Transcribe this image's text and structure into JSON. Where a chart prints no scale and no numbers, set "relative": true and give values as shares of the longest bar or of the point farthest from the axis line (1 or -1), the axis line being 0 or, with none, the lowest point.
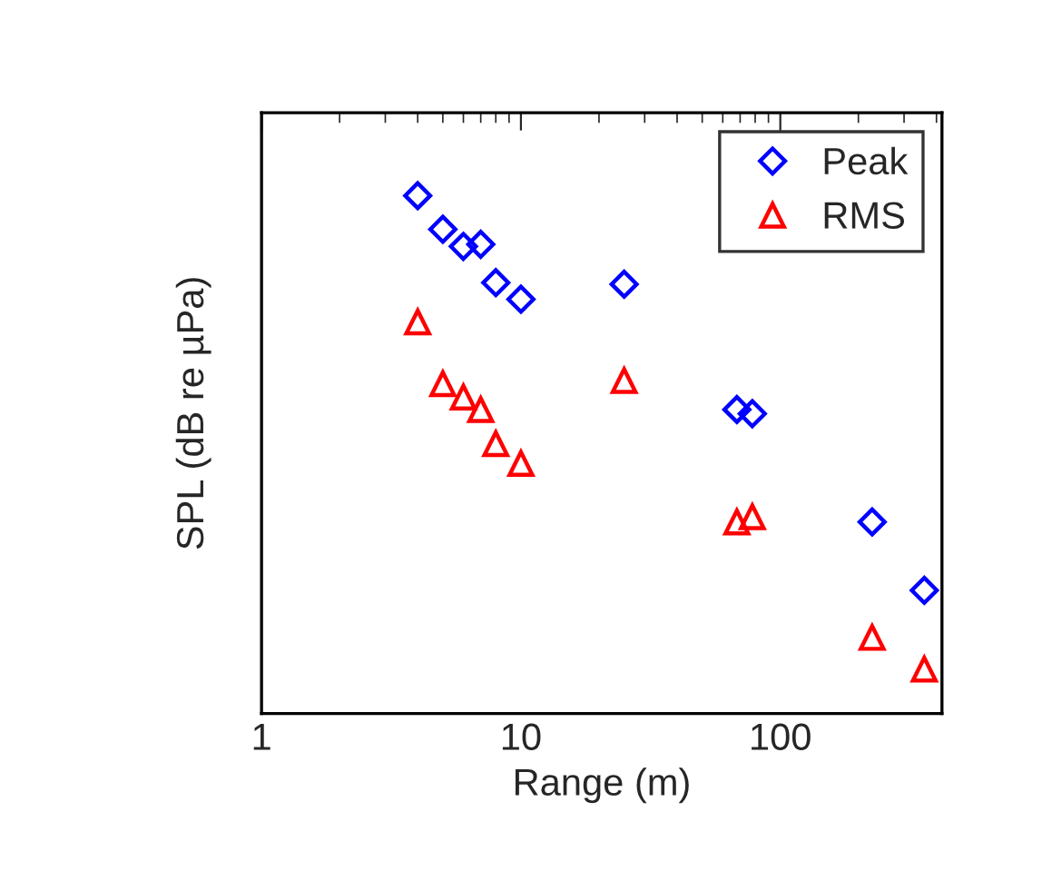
{
  "chart_data": {
    "type": "scatter",
    "relative": true,
    "xlabel": "Range (m)",
    "ylabel": "SPL (dB re µPa)",
    "log": "x",
    "xlim": [
      1,
      420
    ],
    "xticks": [
      1,
      10,
      100
    ],
    "grid": false,
    "legend": "top right",
    "series": [
      {
        "name": "Peak",
        "color": "#0000ff",
        "marker": "diamond",
        "x": [
          4,
          5,
          6,
          7,
          8,
          10,
          25,
          68,
          78,
          226,
          359
        ],
        "values": [
          1.0,
          0.935,
          0.902,
          0.906,
          0.832,
          0.8,
          0.829,
          0.587,
          0.579,
          0.37,
          0.238
        ]
      },
      {
        "name": "RMS",
        "color": "#ff0000",
        "marker": "triangle",
        "x": [
          4,
          5,
          6,
          7,
          8,
          10,
          25,
          68,
          78,
          226,
          359
        ],
        "values": [
          0.756,
          0.637,
          0.611,
          0.587,
          0.521,
          0.483,
          0.643,
          0.37,
          0.38,
          0.147,
          0.086
        ]
      }
    ]
  }
}
